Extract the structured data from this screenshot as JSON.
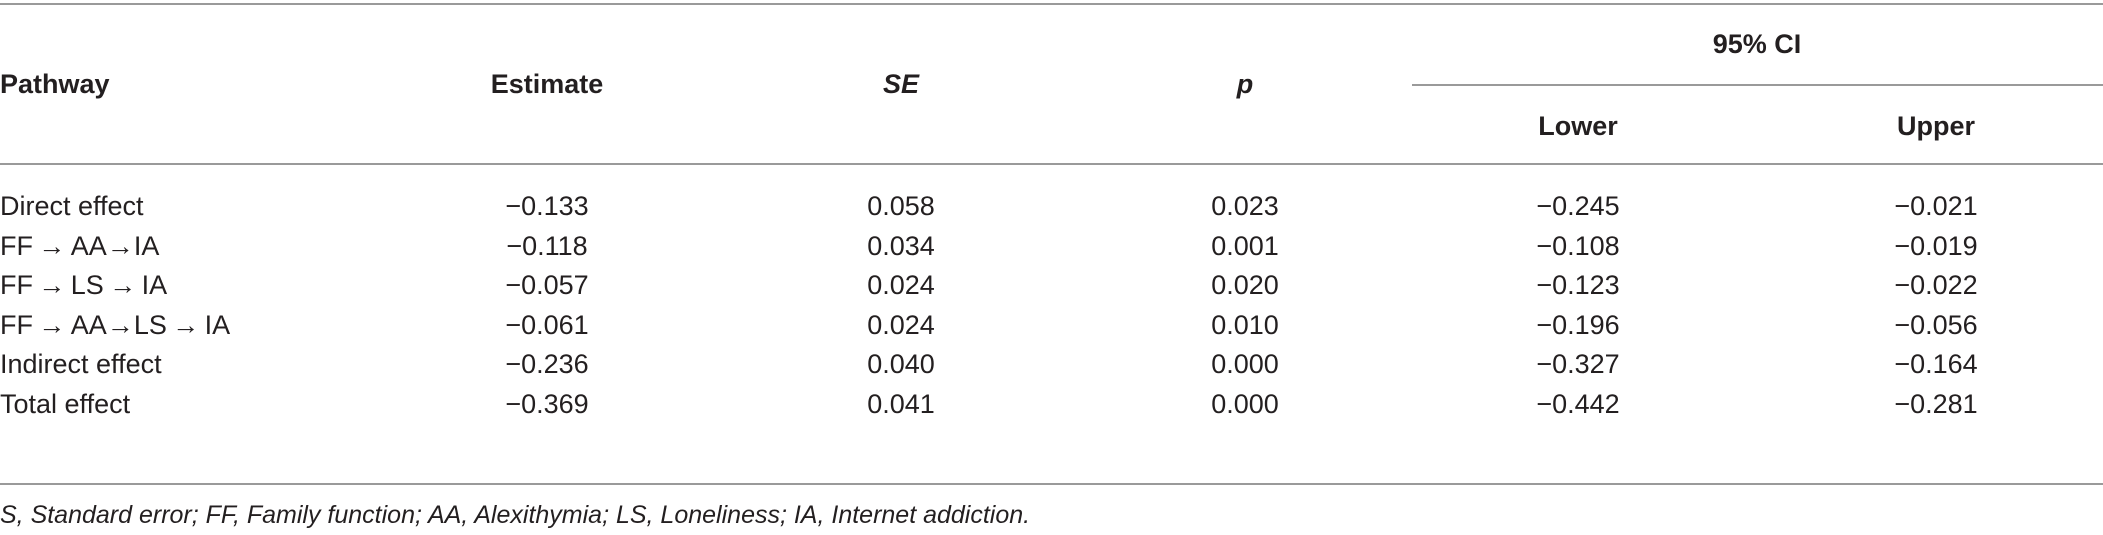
{
  "table": {
    "headers": {
      "pathway": "Pathway",
      "estimate": "Estimate",
      "se": "SE",
      "p": "p",
      "ci": "95% CI",
      "lower": "Lower",
      "upper": "Upper"
    },
    "rows": [
      {
        "pathway": "Direct effect",
        "estimate": "−0.133",
        "se": "0.058",
        "p": "0.023",
        "lower": "−0.245",
        "upper": "−0.021"
      },
      {
        "pathway": "FF → AA→IA",
        "estimate": "−0.118",
        "se": "0.034",
        "p": "0.001",
        "lower": "−0.108",
        "upper": "−0.019"
      },
      {
        "pathway": "FF → LS → IA",
        "estimate": "−0.057",
        "se": "0.024",
        "p": "0.020",
        "lower": "−0.123",
        "upper": "−0.022"
      },
      {
        "pathway": "FF → AA→LS → IA",
        "estimate": "−0.061",
        "se": "0.024",
        "p": "0.010",
        "lower": "−0.196",
        "upper": "−0.056"
      },
      {
        "pathway": "Indirect effect",
        "estimate": "−0.236",
        "se": "0.040",
        "p": "0.000",
        "lower": "−0.327",
        "upper": "−0.164"
      },
      {
        "pathway": "Total effect",
        "estimate": "−0.369",
        "se": "0.041",
        "p": "0.000",
        "lower": "−0.442",
        "upper": "−0.281"
      }
    ]
  },
  "footnote": "S, Standard error; FF, Family function; AA, Alexithymia; LS, Loneliness; IA, Internet addiction."
}
